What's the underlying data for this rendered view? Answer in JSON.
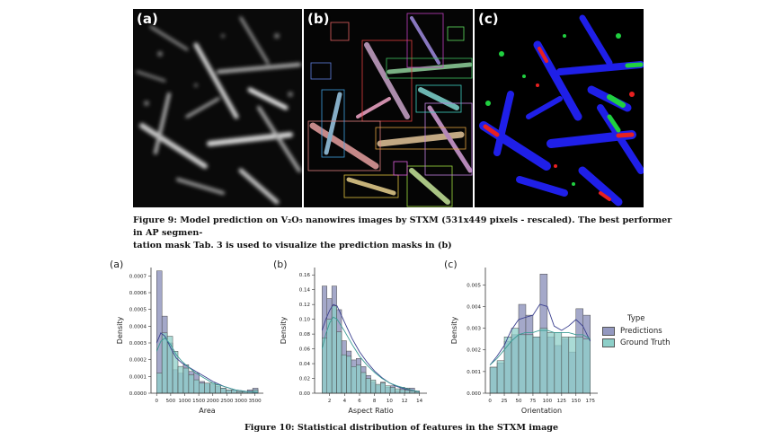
{
  "figure9": {
    "panels": [
      {
        "tag": "(a)"
      },
      {
        "tag": "(b)"
      },
      {
        "tag": "(c)"
      }
    ],
    "caption_line1": "Figure 9: Model prediction on V₂O₅ nanowires images by STXM (531x449 pixels - rescaled). The best performer in AP segmen-",
    "caption_line2": "tation mask Tab. 3 is used to visualize the prediction masks in (b)"
  },
  "figure10": {
    "caption": "Figure 10: Statistical distribution of features in the STXM image",
    "legend": {
      "title": "Type",
      "items": [
        {
          "label": "Predictions",
          "color": "#9499c0"
        },
        {
          "label": "Ground Truth",
          "color": "#8dcfc8"
        }
      ]
    }
  },
  "colors": {
    "predictions": "#9499c0",
    "ground_truth": "#8dcfc8",
    "pred_kde": "#3a3f8f",
    "gt_kde": "#3c9c95"
  },
  "chart_data": [
    {
      "type": "bar",
      "panel": "(a)",
      "xlabel": "Area",
      "ylabel": "Density",
      "xlim": [
        -200,
        3800
      ],
      "ylim": [
        0,
        0.00075
      ],
      "xticks": [
        "0",
        "500",
        "1000",
        "1500",
        "2000",
        "2500",
        "3000",
        "3500"
      ],
      "xtick_values": [
        0,
        500,
        1000,
        1500,
        2000,
        2500,
        3000,
        3500
      ],
      "yticks": [
        "0.0000",
        "0.0001",
        "0.0002",
        "0.0003",
        "0.0004",
        "0.0005",
        "0.0006",
        "0.0007"
      ],
      "ytick_values": [
        0,
        0.0001,
        0.0002,
        0.0003,
        0.0004,
        0.0005,
        0.0006,
        0.0007
      ],
      "bin_edges": [
        0,
        190,
        380,
        570,
        760,
        950,
        1140,
        1330,
        1520,
        1710,
        1900,
        2090,
        2280,
        2470,
        2660,
        2850,
        3040,
        3230,
        3420,
        3610
      ],
      "series": [
        {
          "name": "Predictions",
          "values": [
            0.00073,
            0.00046,
            0.0003,
            0.00014,
            0.00012,
            0.00017,
            0.00013,
            0.00012,
            7e-05,
            6e-05,
            5e-05,
            4e-05,
            3e-05,
            2e-05,
            2e-05,
            1e-05,
            1e-05,
            2e-05,
            3e-05
          ]
        },
        {
          "name": "Ground Truth",
          "values": [
            0.00012,
            0.00036,
            0.00034,
            0.00025,
            0.00016,
            0.00015,
            0.00011,
            8e-05,
            6e-05,
            6e-05,
            6e-05,
            5e-05,
            3e-05,
            2e-05,
            2e-05,
            1e-05,
            1e-05,
            1e-05,
            2e-05
          ]
        }
      ],
      "kde": [
        {
          "name": "Predictions",
          "x": [
            0,
            150,
            300,
            500,
            700,
            900,
            1100,
            1400,
            1700,
            2000,
            2400,
            2800,
            3200,
            3600
          ],
          "y": [
            0.0003,
            0.00036,
            0.00034,
            0.00027,
            0.00021,
            0.00018,
            0.00016,
            0.00013,
            0.0001,
            7e-05,
            4e-05,
            2e-05,
            1e-05,
            5e-06
          ]
        },
        {
          "name": "Ground Truth",
          "x": [
            0,
            150,
            300,
            500,
            700,
            900,
            1100,
            1400,
            1700,
            2000,
            2400,
            2800,
            3200,
            3600
          ],
          "y": [
            0.00025,
            0.00031,
            0.00033,
            0.00029,
            0.00023,
            0.00019,
            0.00016,
            0.00012,
            9e-05,
            6e-05,
            4e-05,
            2e-05,
            1e-05,
            5e-06
          ]
        }
      ]
    },
    {
      "type": "bar",
      "panel": "(b)",
      "xlabel": "Aspect Ratio",
      "ylabel": "Density",
      "xlim": [
        0,
        15
      ],
      "ylim": [
        0,
        0.17
      ],
      "xticks": [
        "2",
        "4",
        "6",
        "8",
        "10",
        "12",
        "14"
      ],
      "xtick_values": [
        2,
        4,
        6,
        8,
        10,
        12,
        14
      ],
      "yticks": [
        "0.00",
        "0.02",
        "0.04",
        "0.06",
        "0.08",
        "0.10",
        "0.12",
        "0.14",
        "0.16"
      ],
      "ytick_values": [
        0,
        0.02,
        0.04,
        0.06,
        0.08,
        0.1,
        0.12,
        0.14,
        0.16
      ],
      "bin_edges": [
        1,
        1.65,
        2.3,
        2.95,
        3.6,
        4.25,
        4.9,
        5.55,
        6.2,
        6.85,
        7.5,
        8.15,
        8.8,
        9.45,
        10.1,
        10.75,
        11.4,
        12.05,
        12.7,
        13.35,
        14
      ],
      "series": [
        {
          "name": "Predictions",
          "values": [
            0.145,
            0.128,
            0.145,
            0.113,
            0.071,
            0.057,
            0.045,
            0.047,
            0.036,
            0.024,
            0.015,
            0.01,
            0.015,
            0.008,
            0.01,
            0.003,
            0.008,
            0.007,
            0.007,
            0.003
          ]
        },
        {
          "name": "Ground Truth",
          "values": [
            0.075,
            0.1,
            0.118,
            0.083,
            0.052,
            0.05,
            0.036,
            0.038,
            0.028,
            0.02,
            0.018,
            0.012,
            0.014,
            0.01,
            0.008,
            0.006,
            0.005,
            0.004,
            0.003,
            0.002
          ]
        }
      ],
      "kde": [
        {
          "name": "Predictions",
          "x": [
            1,
            1.5,
            2,
            2.5,
            3,
            4,
            5,
            6,
            7,
            8,
            9,
            10,
            11,
            12,
            13,
            14
          ],
          "y": [
            0.085,
            0.1,
            0.112,
            0.12,
            0.118,
            0.096,
            0.074,
            0.056,
            0.042,
            0.03,
            0.021,
            0.014,
            0.009,
            0.006,
            0.004,
            0.002
          ]
        },
        {
          "name": "Ground Truth",
          "x": [
            1,
            1.5,
            2,
            2.5,
            3,
            4,
            5,
            6,
            7,
            8,
            9,
            10,
            11,
            12,
            13,
            14
          ],
          "y": [
            0.06,
            0.08,
            0.095,
            0.103,
            0.1,
            0.084,
            0.066,
            0.05,
            0.038,
            0.028,
            0.02,
            0.014,
            0.01,
            0.007,
            0.004,
            0.002
          ]
        }
      ]
    },
    {
      "type": "bar",
      "panel": "(c)",
      "xlabel": "Orientation",
      "ylabel": "Density",
      "xlim": [
        -8,
        188
      ],
      "ylim": [
        0,
        0.0058
      ],
      "xticks": [
        "0",
        "25",
        "50",
        "75",
        "100",
        "125",
        "150",
        "175"
      ],
      "xtick_values": [
        0,
        25,
        50,
        75,
        100,
        125,
        150,
        175
      ],
      "yticks": [
        "0.000",
        "0.001",
        "0.002",
        "0.003",
        "0.004",
        "0.005"
      ],
      "ytick_values": [
        0,
        0.001,
        0.002,
        0.003,
        0.004,
        0.005
      ],
      "bin_edges": [
        0,
        12.5,
        25,
        37.5,
        50,
        62.5,
        75,
        87.5,
        100,
        112.5,
        125,
        137.5,
        150,
        162.5,
        175
      ],
      "series": [
        {
          "name": "Predictions",
          "values": [
            0.0012,
            0.0014,
            0.0024,
            0.0027,
            0.0041,
            0.0036,
            0.0026,
            0.0055,
            0.0026,
            0.0022,
            0.0025,
            0.0019,
            0.0039,
            0.0036
          ]
        },
        {
          "name": "Ground Truth",
          "values": [
            0.0012,
            0.0015,
            0.0026,
            0.003,
            0.0027,
            0.0027,
            0.0026,
            0.003,
            0.0028,
            0.0028,
            0.0026,
            0.0026,
            0.0026,
            0.0025
          ]
        }
      ],
      "kde": [
        {
          "name": "Predictions",
          "x": [
            0,
            12,
            25,
            37,
            50,
            62,
            75,
            87,
            100,
            112,
            125,
            137,
            150,
            162,
            175
          ],
          "y": [
            0.0013,
            0.0017,
            0.0022,
            0.0029,
            0.0034,
            0.0035,
            0.0036,
            0.0041,
            0.004,
            0.0031,
            0.0029,
            0.0031,
            0.0034,
            0.0031,
            0.0024
          ]
        },
        {
          "name": "Ground Truth",
          "x": [
            0,
            12,
            25,
            37,
            50,
            62,
            75,
            87,
            100,
            112,
            125,
            137,
            150,
            162,
            175
          ],
          "y": [
            0.0013,
            0.0016,
            0.002,
            0.0024,
            0.0027,
            0.0028,
            0.0028,
            0.0029,
            0.0029,
            0.0028,
            0.0028,
            0.0028,
            0.0027,
            0.0027,
            0.0025
          ]
        }
      ]
    }
  ]
}
